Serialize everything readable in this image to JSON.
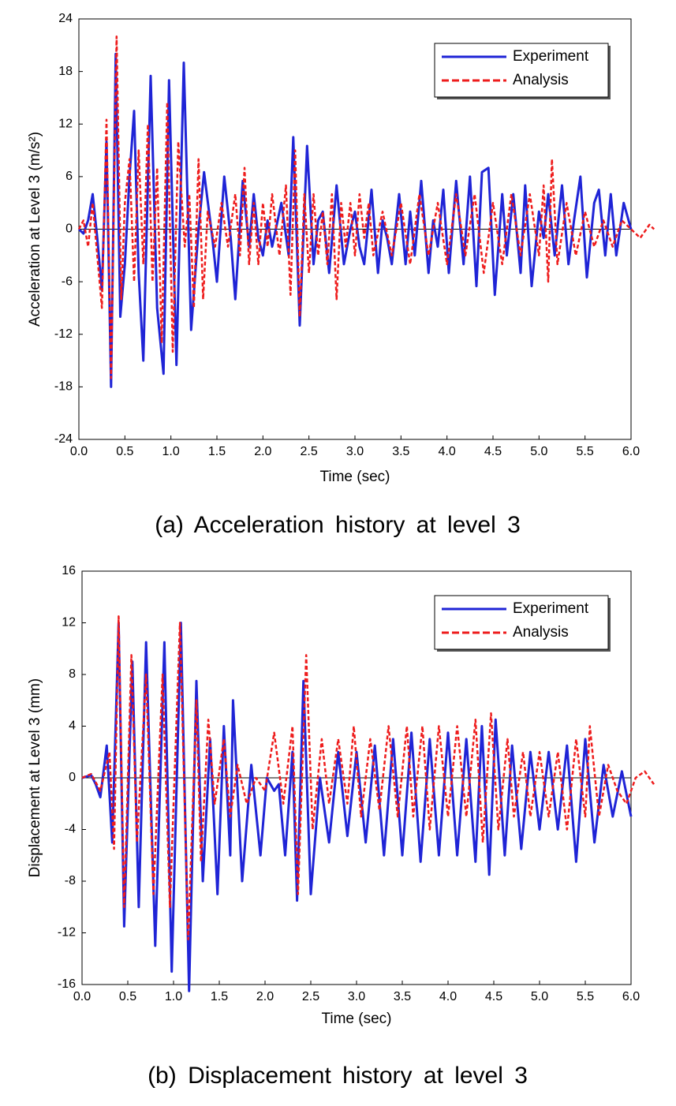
{
  "chart_data": [
    {
      "type": "line",
      "caption": "(a)  Acceleration history at level 3",
      "xlabel": "Time (sec)",
      "ylabel": "Acceleration at Level 3 (m/s²)",
      "xlim": [
        0,
        6
      ],
      "ylim": [
        -24,
        24
      ],
      "xticks": [
        {
          "value": 0,
          "label": "0.0"
        },
        0.5,
        {
          "value": 1,
          "label": "1.0"
        },
        1.5,
        {
          "value": 2,
          "label": "2.0"
        },
        2.5,
        {
          "value": 3,
          "label": "3.0"
        },
        3.5,
        {
          "value": 4,
          "label": "4.0"
        },
        4.5,
        {
          "value": 5,
          "label": "5.0"
        },
        5.5,
        {
          "value": 6,
          "label": "6.0"
        }
      ],
      "yticks": [
        -24,
        -18,
        -12,
        -6,
        0,
        6,
        12,
        18,
        24
      ],
      "legend": "upper right",
      "zero_line": true,
      "series": [
        {
          "name": "Experiment",
          "color": "#1f24d6",
          "line_style": "solid",
          "x": [
            0,
            0.05,
            0.1,
            0.15,
            0.2,
            0.25,
            0.3,
            0.35,
            0.4,
            0.45,
            0.5,
            0.55,
            0.6,
            0.65,
            0.7,
            0.78,
            0.85,
            0.92,
            0.98,
            1.06,
            1.14,
            1.22,
            1.3,
            1.36,
            1.45,
            1.5,
            1.58,
            1.65,
            1.7,
            1.78,
            1.85,
            1.9,
            1.95,
            2.0,
            2.05,
            2.1,
            2.2,
            2.28,
            2.33,
            2.4,
            2.48,
            2.55,
            2.6,
            2.65,
            2.72,
            2.8,
            2.88,
            2.95,
            3.0,
            3.05,
            3.1,
            3.18,
            3.25,
            3.3,
            3.35,
            3.4,
            3.48,
            3.55,
            3.6,
            3.65,
            3.72,
            3.8,
            3.85,
            3.9,
            3.96,
            4.02,
            4.1,
            4.18,
            4.25,
            4.32,
            4.38,
            4.45,
            4.52,
            4.6,
            4.65,
            4.72,
            4.8,
            4.85,
            4.92,
            5.0,
            5.05,
            5.1,
            5.17,
            5.25,
            5.32,
            5.38,
            5.45,
            5.52,
            5.6,
            5.65,
            5.72,
            5.78,
            5.84,
            5.92,
            6.0
          ],
          "values": [
            0,
            -0.5,
            1,
            4,
            -1,
            -7,
            10,
            -18,
            20,
            -10,
            -4,
            6,
            13.5,
            -5,
            -15,
            17.5,
            -9,
            -16.5,
            17,
            -15.5,
            19,
            -11.5,
            0,
            6.5,
            -1,
            -6,
            6,
            -1,
            -8,
            5.5,
            -2,
            4,
            -1,
            -3,
            1,
            -2,
            3,
            -3,
            10.5,
            -11,
            9.5,
            -4,
            1,
            2,
            -5,
            5,
            -4,
            0,
            2,
            -2,
            -4,
            4.5,
            -5,
            1,
            -1,
            -4,
            4,
            -4,
            2,
            -3,
            5.5,
            -5,
            1,
            -2,
            4.5,
            -5,
            5.5,
            -4,
            6,
            -6.5,
            6.5,
            7,
            -7.5,
            4,
            -3,
            4,
            -5,
            5,
            -6.5,
            2,
            -1,
            4,
            -3,
            5,
            -4,
            1,
            6,
            -5.5,
            3,
            4.5,
            -3,
            4,
            -3,
            3,
            0
          ]
        },
        {
          "name": "Analysis",
          "color": "#ee1c1c",
          "line_style": "dashed",
          "x": [
            0,
            0.05,
            0.1,
            0.15,
            0.2,
            0.25,
            0.3,
            0.35,
            0.41,
            0.46,
            0.5,
            0.55,
            0.6,
            0.65,
            0.7,
            0.75,
            0.8,
            0.85,
            0.9,
            0.96,
            1.02,
            1.08,
            1.15,
            1.2,
            1.25,
            1.3,
            1.35,
            1.4,
            1.48,
            1.55,
            1.62,
            1.7,
            1.75,
            1.8,
            1.85,
            1.9,
            1.95,
            2.0,
            2.05,
            2.1,
            2.18,
            2.25,
            2.3,
            2.35,
            2.4,
            2.45,
            2.5,
            2.55,
            2.6,
            2.65,
            2.7,
            2.75,
            2.8,
            2.85,
            2.9,
            2.95,
            3.0,
            3.05,
            3.1,
            3.15,
            3.2,
            3.3,
            3.4,
            3.5,
            3.6,
            3.7,
            3.8,
            3.9,
            4.0,
            4.1,
            4.2,
            4.3,
            4.4,
            4.5,
            4.6,
            4.7,
            4.8,
            4.9,
            5.0,
            5.05,
            5.1,
            5.14,
            5.2,
            5.3,
            5.4,
            5.5,
            5.6,
            5.7,
            5.8,
            5.9,
            6.0,
            6.1,
            6.2,
            6.25
          ],
          "values": [
            0,
            1,
            -2,
            3,
            -3,
            -9,
            12.5,
            -17,
            22,
            -8,
            3,
            8,
            -6,
            9,
            -4,
            12,
            -6,
            7,
            -13,
            14.5,
            -14,
            10,
            -2,
            4,
            -9,
            8,
            -8,
            2,
            -2,
            3,
            -2,
            4,
            -3,
            7,
            -4,
            3,
            -4,
            3,
            -2,
            4,
            -3,
            5,
            -7.5,
            9,
            -10,
            4,
            -5,
            4,
            -3,
            2,
            -4,
            4,
            -8,
            3,
            -2,
            3,
            -3,
            4,
            -1,
            3,
            -3,
            2,
            -3,
            3,
            -4,
            4,
            -3,
            3,
            -4,
            4,
            -3,
            4,
            -5,
            3,
            -4,
            4,
            -3,
            4,
            -3,
            5,
            -6,
            8,
            -4,
            3,
            -3,
            2,
            -2,
            1,
            -2,
            1,
            0,
            -1,
            0.5,
            0
          ]
        }
      ]
    },
    {
      "type": "line",
      "caption": "(b)  Displacement history at level 3",
      "xlabel": "Time (sec)",
      "ylabel": "Displacement at Level 3 (mm)",
      "xlim": [
        0,
        6
      ],
      "ylim": [
        -16,
        16
      ],
      "xticks": [
        {
          "value": 0,
          "label": "0.0"
        },
        0.5,
        {
          "value": 1,
          "label": "1.0"
        },
        1.5,
        {
          "value": 2,
          "label": "2.0"
        },
        2.5,
        {
          "value": 3,
          "label": "3.0"
        },
        3.5,
        {
          "value": 4,
          "label": "4.0"
        },
        4.5,
        {
          "value": 5,
          "label": "5.0"
        },
        5.5,
        {
          "value": 6,
          "label": "6.0"
        }
      ],
      "yticks": [
        -16,
        -12,
        -8,
        -4,
        0,
        4,
        8,
        12,
        16
      ],
      "legend": "upper right",
      "zero_line": true,
      "series": [
        {
          "name": "Experiment",
          "color": "#1f24d6",
          "line_style": "solid",
          "x": [
            0,
            0.1,
            0.15,
            0.2,
            0.27,
            0.33,
            0.4,
            0.46,
            0.55,
            0.62,
            0.7,
            0.8,
            0.9,
            0.98,
            1.08,
            1.17,
            1.25,
            1.32,
            1.4,
            1.48,
            1.55,
            1.62,
            1.65,
            1.75,
            1.85,
            1.95,
            2.02,
            2.1,
            2.15,
            2.22,
            2.3,
            2.35,
            2.42,
            2.5,
            2.6,
            2.7,
            2.8,
            2.9,
            3.0,
            3.1,
            3.2,
            3.3,
            3.4,
            3.5,
            3.6,
            3.7,
            3.8,
            3.9,
            4.0,
            4.1,
            4.2,
            4.3,
            4.37,
            4.45,
            4.52,
            4.62,
            4.7,
            4.8,
            4.9,
            5.0,
            5.1,
            5.2,
            5.3,
            5.4,
            5.5,
            5.6,
            5.7,
            5.8,
            5.9,
            6.0
          ],
          "values": [
            0,
            0.2,
            -0.5,
            -1.5,
            2.5,
            -5,
            12,
            -11.5,
            9,
            -10,
            10.5,
            -13,
            10.5,
            -15,
            12,
            -16.5,
            7.5,
            -8,
            3,
            -9,
            4,
            -6,
            6,
            -8,
            1,
            -6,
            0,
            -1,
            -0.5,
            -6,
            2,
            -9.5,
            7.5,
            -9,
            0,
            -5,
            2,
            -4.5,
            2,
            -5,
            2.5,
            -6,
            3,
            -6,
            3.5,
            -6.5,
            3,
            -6,
            3.5,
            -6,
            3,
            -6.5,
            4,
            -7.5,
            4.5,
            -6,
            2.5,
            -5.5,
            2,
            -4,
            2,
            -4,
            2.5,
            -6.5,
            3,
            -5,
            1,
            -3,
            0.5,
            -3
          ]
        },
        {
          "name": "Analysis",
          "color": "#ee1c1c",
          "line_style": "dashed",
          "x": [
            0,
            0.1,
            0.2,
            0.3,
            0.35,
            0.4,
            0.46,
            0.54,
            0.6,
            0.7,
            0.78,
            0.88,
            0.96,
            1.07,
            1.16,
            1.25,
            1.3,
            1.38,
            1.45,
            1.55,
            1.62,
            1.7,
            1.8,
            1.9,
            2.0,
            2.1,
            2.2,
            2.3,
            2.36,
            2.45,
            2.52,
            2.62,
            2.7,
            2.8,
            2.9,
            2.97,
            3.05,
            3.15,
            3.25,
            3.35,
            3.45,
            3.55,
            3.62,
            3.72,
            3.8,
            3.9,
            4.0,
            4.1,
            4.2,
            4.3,
            4.38,
            4.47,
            4.55,
            4.65,
            4.72,
            4.82,
            4.9,
            5.0,
            5.1,
            5.2,
            5.3,
            5.4,
            5.5,
            5.55,
            5.65,
            5.75,
            5.85,
            5.95,
            6.05,
            6.15,
            6.25
          ],
          "values": [
            0,
            0.3,
            -1,
            2,
            -5.5,
            12.5,
            -10,
            9.5,
            -5,
            8,
            -9,
            8,
            -10,
            12,
            -12.5,
            6,
            -6.5,
            4.5,
            -2,
            3,
            -3,
            1,
            -2,
            0,
            -1,
            3.5,
            -2,
            4,
            -9,
            9.5,
            -4,
            3,
            -2,
            3,
            -2,
            4,
            -3,
            3,
            -2.5,
            4,
            -3,
            4,
            -3,
            4,
            -4,
            4,
            -3,
            4,
            -3,
            4.5,
            -5,
            5,
            -4,
            3,
            -3,
            2,
            -3,
            2,
            -3,
            2,
            -4,
            3,
            -3,
            4,
            -3,
            1,
            -1,
            -2,
            0,
            0.5,
            -0.5
          ]
        }
      ]
    }
  ]
}
